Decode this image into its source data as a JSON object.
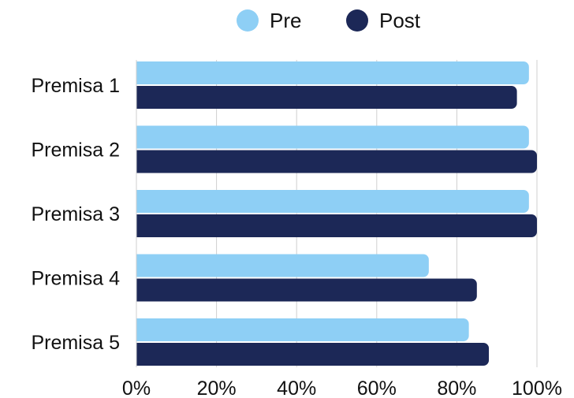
{
  "chart_data": {
    "type": "bar",
    "orientation": "horizontal",
    "categories": [
      "Premisa 1",
      "Premisa 2",
      "Premisa 3",
      "Premisa 4",
      "Premisa 5"
    ],
    "series": [
      {
        "name": "Pre",
        "color": "#8ecff5",
        "values": [
          98,
          98,
          98,
          73,
          83
        ]
      },
      {
        "name": "Post",
        "color": "#1c2857",
        "values": [
          95,
          100,
          100,
          85,
          88
        ]
      }
    ],
    "xlim": [
      0,
      100
    ],
    "xticks": [
      "0%",
      "20%",
      "40%",
      "60%",
      "80%",
      "100%"
    ],
    "xtick_values": [
      0,
      20,
      40,
      60,
      80,
      100
    ],
    "grid": "vertical",
    "legend_placement": "top-center",
    "title": "",
    "xlabel": "",
    "ylabel": ""
  }
}
